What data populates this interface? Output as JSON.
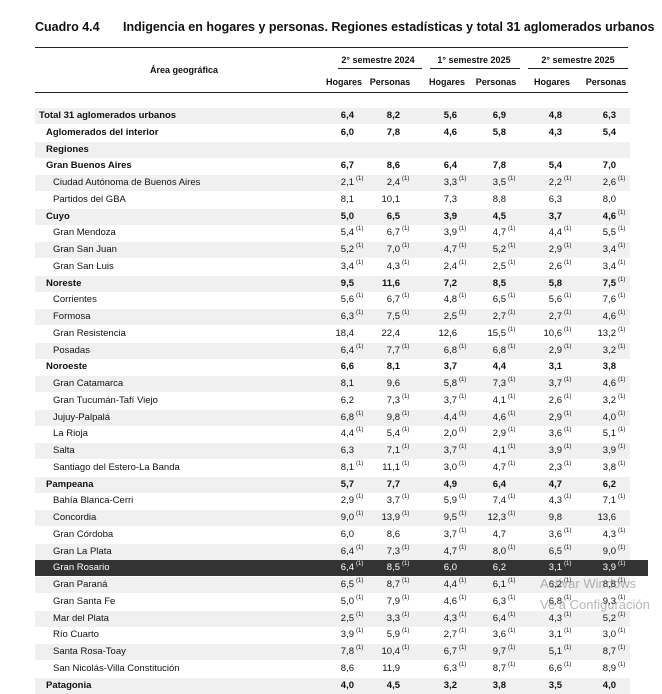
{
  "header": {
    "code": "Cuadro 4.4",
    "title": "Indigencia en hogares y personas. Regiones estadísticas y total 31 aglomerados urbanos"
  },
  "table": {
    "area_header": "Área geográfica",
    "groups": [
      "2° semestre 2024",
      "1° semestre 2025",
      "2° semestre 2025"
    ],
    "subheaders": [
      "Hogares",
      "Personas",
      "Hogares",
      "Personas",
      "Hogares",
      "Personas"
    ],
    "rows": [
      {
        "name": "Total 31 aglomerados urbanos",
        "level": 0,
        "cells": [
          {
            "v": "6,4"
          },
          {
            "v": "8,2"
          },
          {
            "v": "5,6"
          },
          {
            "v": "6,9"
          },
          {
            "v": "4,8"
          },
          {
            "v": "6,3"
          }
        ]
      },
      {
        "name": "Aglomerados del interior",
        "level": 1,
        "cells": [
          {
            "v": "6,0"
          },
          {
            "v": "7,8"
          },
          {
            "v": "4,6"
          },
          {
            "v": "5,8"
          },
          {
            "v": "4,3"
          },
          {
            "v": "5,4"
          }
        ]
      },
      {
        "name": "Regiones",
        "level": 1,
        "cells": []
      },
      {
        "name": "Gran Buenos Aires",
        "level": 2,
        "cells": [
          {
            "v": "6,7"
          },
          {
            "v": "8,6"
          },
          {
            "v": "6,4"
          },
          {
            "v": "7,8"
          },
          {
            "v": "5,4"
          },
          {
            "v": "7,0"
          }
        ]
      },
      {
        "name": "Ciudad Autónoma de Buenos Aires",
        "level": 3,
        "cells": [
          {
            "v": "2,1",
            "n": "(1)"
          },
          {
            "v": "2,4",
            "n": "(1)"
          },
          {
            "v": "3,3",
            "n": "(1)"
          },
          {
            "v": "3,5",
            "n": "(1)"
          },
          {
            "v": "2,2",
            "n": "(1)"
          },
          {
            "v": "2,6",
            "n": "(1)"
          }
        ]
      },
      {
        "name": "Partidos del GBA",
        "level": 3,
        "cells": [
          {
            "v": "8,1"
          },
          {
            "v": "10,1"
          },
          {
            "v": "7,3"
          },
          {
            "v": "8,8"
          },
          {
            "v": "6,3"
          },
          {
            "v": "8,0"
          }
        ]
      },
      {
        "name": "Cuyo",
        "level": 2,
        "cells": [
          {
            "v": "5,0"
          },
          {
            "v": "6,5"
          },
          {
            "v": "3,9"
          },
          {
            "v": "4,5"
          },
          {
            "v": "3,7"
          },
          {
            "v": "4,6",
            "n": "(1)"
          }
        ]
      },
      {
        "name": "Gran Mendoza",
        "level": 3,
        "cells": [
          {
            "v": "5,4",
            "n": "(1)"
          },
          {
            "v": "6,7",
            "n": "(1)"
          },
          {
            "v": "3,9",
            "n": "(1)"
          },
          {
            "v": "4,7",
            "n": "(1)"
          },
          {
            "v": "4,4",
            "n": "(1)"
          },
          {
            "v": "5,5",
            "n": "(1)"
          }
        ]
      },
      {
        "name": "Gran San Juan",
        "level": 3,
        "cells": [
          {
            "v": "5,2",
            "n": "(1)"
          },
          {
            "v": "7,0",
            "n": "(1)"
          },
          {
            "v": "4,7",
            "n": "(1)"
          },
          {
            "v": "5,2",
            "n": "(1)"
          },
          {
            "v": "2,9",
            "n": "(1)"
          },
          {
            "v": "3,4",
            "n": "(1)"
          }
        ]
      },
      {
        "name": "Gran San Luis",
        "level": 3,
        "cells": [
          {
            "v": "3,4",
            "n": "(1)"
          },
          {
            "v": "4,3",
            "n": "(1)"
          },
          {
            "v": "2,4",
            "n": "(1)"
          },
          {
            "v": "2,5",
            "n": "(1)"
          },
          {
            "v": "2,6",
            "n": "(1)"
          },
          {
            "v": "3,4",
            "n": "(1)"
          }
        ]
      },
      {
        "name": "Noreste",
        "level": 2,
        "cells": [
          {
            "v": "9,5"
          },
          {
            "v": "11,6"
          },
          {
            "v": "7,2"
          },
          {
            "v": "8,5"
          },
          {
            "v": "5,8"
          },
          {
            "v": "7,5",
            "n": "(1)"
          }
        ]
      },
      {
        "name": "Corrientes",
        "level": 3,
        "cells": [
          {
            "v": "5,6",
            "n": "(1)"
          },
          {
            "v": "6,7",
            "n": "(1)"
          },
          {
            "v": "4,8",
            "n": "(1)"
          },
          {
            "v": "6,5",
            "n": "(1)"
          },
          {
            "v": "5,6",
            "n": "(1)"
          },
          {
            "v": "7,6",
            "n": "(1)"
          }
        ]
      },
      {
        "name": "Formosa",
        "level": 3,
        "cells": [
          {
            "v": "6,3",
            "n": "(1)"
          },
          {
            "v": "7,5",
            "n": "(1)"
          },
          {
            "v": "2,5",
            "n": "(1)"
          },
          {
            "v": "2,7",
            "n": "(1)"
          },
          {
            "v": "2,7",
            "n": "(1)"
          },
          {
            "v": "4,6",
            "n": "(1)"
          }
        ]
      },
      {
        "name": "Gran Resistencia",
        "level": 3,
        "cells": [
          {
            "v": "18,4"
          },
          {
            "v": "22,4"
          },
          {
            "v": "12,6"
          },
          {
            "v": "15,5",
            "n": "(1)"
          },
          {
            "v": "10,6",
            "n": "(1)"
          },
          {
            "v": "13,2",
            "n": "(1)"
          }
        ]
      },
      {
        "name": "Posadas",
        "level": 3,
        "cells": [
          {
            "v": "6,4",
            "n": "(1)"
          },
          {
            "v": "7,7",
            "n": "(1)"
          },
          {
            "v": "6,8",
            "n": "(1)"
          },
          {
            "v": "6,8",
            "n": "(1)"
          },
          {
            "v": "2,9",
            "n": "(1)"
          },
          {
            "v": "3,2",
            "n": "(1)"
          }
        ]
      },
      {
        "name": "Noroeste",
        "level": 2,
        "cells": [
          {
            "v": "6,6"
          },
          {
            "v": "8,1"
          },
          {
            "v": "3,7"
          },
          {
            "v": "4,4"
          },
          {
            "v": "3,1"
          },
          {
            "v": "3,8"
          }
        ]
      },
      {
        "name": "Gran Catamarca",
        "level": 3,
        "cells": [
          {
            "v": "8,1"
          },
          {
            "v": "9,6"
          },
          {
            "v": "5,8",
            "n": "(1)"
          },
          {
            "v": "7,3",
            "n": "(1)"
          },
          {
            "v": "3,7",
            "n": "(1)"
          },
          {
            "v": "4,6",
            "n": "(1)"
          }
        ]
      },
      {
        "name": "Gran Tucumán-Tafí Viejo",
        "level": 3,
        "cells": [
          {
            "v": "6,2"
          },
          {
            "v": "7,3",
            "n": "(1)"
          },
          {
            "v": "3,7",
            "n": "(1)"
          },
          {
            "v": "4,1",
            "n": "(1)"
          },
          {
            "v": "2,6",
            "n": "(1)"
          },
          {
            "v": "3,2",
            "n": "(1)"
          }
        ]
      },
      {
        "name": "Jujuy-Palpalá",
        "level": 3,
        "cells": [
          {
            "v": "6,8",
            "n": "(1)"
          },
          {
            "v": "9,8",
            "n": "(1)"
          },
          {
            "v": "4,4",
            "n": "(1)"
          },
          {
            "v": "4,6",
            "n": "(1)"
          },
          {
            "v": "2,9",
            "n": "(1)"
          },
          {
            "v": "4,0",
            "n": "(1)"
          }
        ]
      },
      {
        "name": "La Rioja",
        "level": 3,
        "cells": [
          {
            "v": "4,4",
            "n": "(1)"
          },
          {
            "v": "5,4",
            "n": "(1)"
          },
          {
            "v": "2,0",
            "n": "(1)"
          },
          {
            "v": "2,9",
            "n": "(1)"
          },
          {
            "v": "3,6",
            "n": "(1)"
          },
          {
            "v": "5,1",
            "n": "(1)"
          }
        ]
      },
      {
        "name": "Salta",
        "level": 3,
        "cells": [
          {
            "v": "6,3"
          },
          {
            "v": "7,1",
            "n": "(1)"
          },
          {
            "v": "3,7",
            "n": "(1)"
          },
          {
            "v": "4,1",
            "n": "(1)"
          },
          {
            "v": "3,9",
            "n": "(1)"
          },
          {
            "v": "3,9",
            "n": "(1)"
          }
        ]
      },
      {
        "name": "Santiago del Estero-La Banda",
        "level": 3,
        "cells": [
          {
            "v": "8,1",
            "n": "(1)"
          },
          {
            "v": "11,1",
            "n": "(1)"
          },
          {
            "v": "3,0",
            "n": "(1)"
          },
          {
            "v": "4,7",
            "n": "(1)"
          },
          {
            "v": "2,3",
            "n": "(1)"
          },
          {
            "v": "3,8",
            "n": "(1)"
          }
        ]
      },
      {
        "name": "Pampeana",
        "level": 2,
        "cells": [
          {
            "v": "5,7"
          },
          {
            "v": "7,7"
          },
          {
            "v": "4,9"
          },
          {
            "v": "6,4"
          },
          {
            "v": "4,7"
          },
          {
            "v": "6,2"
          }
        ]
      },
      {
        "name": "Bahía Blanca-Cerri",
        "level": 3,
        "cells": [
          {
            "v": "2,9",
            "n": "(1)"
          },
          {
            "v": "3,7",
            "n": "(1)"
          },
          {
            "v": "5,9",
            "n": "(1)"
          },
          {
            "v": "7,4",
            "n": "(1)"
          },
          {
            "v": "4,3",
            "n": "(1)"
          },
          {
            "v": "7,1",
            "n": "(1)"
          }
        ]
      },
      {
        "name": "Concordia",
        "level": 3,
        "cells": [
          {
            "v": "9,0",
            "n": "(1)"
          },
          {
            "v": "13,9",
            "n": "(1)"
          },
          {
            "v": "9,5",
            "n": "(1)"
          },
          {
            "v": "12,3",
            "n": "(1)"
          },
          {
            "v": "9,8"
          },
          {
            "v": "13,6"
          }
        ]
      },
      {
        "name": "Gran Córdoba",
        "level": 3,
        "cells": [
          {
            "v": "6,0"
          },
          {
            "v": "8,6"
          },
          {
            "v": "3,7",
            "n": "(1)"
          },
          {
            "v": "4,7"
          },
          {
            "v": "3,6",
            "n": "(1)"
          },
          {
            "v": "4,3",
            "n": "(1)"
          }
        ]
      },
      {
        "name": "Gran La Plata",
        "level": 3,
        "cells": [
          {
            "v": "6,4",
            "n": "(1)"
          },
          {
            "v": "7,3",
            "n": "(1)"
          },
          {
            "v": "4,7",
            "n": "(1)"
          },
          {
            "v": "8,0",
            "n": "(1)"
          },
          {
            "v": "6,5",
            "n": "(1)"
          },
          {
            "v": "9,0",
            "n": "(1)"
          }
        ]
      },
      {
        "name": "Gran Rosario",
        "level": 3,
        "highlight": true,
        "cells": [
          {
            "v": "6,4",
            "n": "(1)"
          },
          {
            "v": "8,5",
            "n": "(1)"
          },
          {
            "v": "6,0"
          },
          {
            "v": "6,2"
          },
          {
            "v": "3,1",
            "n": "(1)"
          },
          {
            "v": "3,9",
            "n": "(1)"
          }
        ]
      },
      {
        "name": "Gran Paraná",
        "level": 3,
        "cells": [
          {
            "v": "6,5",
            "n": "(1)"
          },
          {
            "v": "8,7",
            "n": "(1)"
          },
          {
            "v": "4,4",
            "n": "(1)"
          },
          {
            "v": "6,1",
            "n": "(1)"
          },
          {
            "v": "6,2",
            "n": "(1)"
          },
          {
            "v": "8,8",
            "n": "(1)"
          }
        ]
      },
      {
        "name": "Gran Santa Fe",
        "level": 3,
        "cells": [
          {
            "v": "5,0",
            "n": "(1)"
          },
          {
            "v": "7,9",
            "n": "(1)"
          },
          {
            "v": "4,6",
            "n": "(1)"
          },
          {
            "v": "6,3",
            "n": "(1)"
          },
          {
            "v": "6,8",
            "n": "(1)"
          },
          {
            "v": "9,3",
            "n": "(1)"
          }
        ]
      },
      {
        "name": "Mar del Plata",
        "level": 3,
        "cells": [
          {
            "v": "2,5",
            "n": "(1)"
          },
          {
            "v": "3,3",
            "n": "(1)"
          },
          {
            "v": "4,3",
            "n": "(1)"
          },
          {
            "v": "6,4",
            "n": "(1)"
          },
          {
            "v": "4,3",
            "n": "(1)"
          },
          {
            "v": "5,2",
            "n": "(1)"
          }
        ]
      },
      {
        "name": "Río Cuarto",
        "level": 3,
        "cells": [
          {
            "v": "3,9",
            "n": "(1)"
          },
          {
            "v": "5,9",
            "n": "(1)"
          },
          {
            "v": "2,7",
            "n": "(1)"
          },
          {
            "v": "3,6",
            "n": "(1)"
          },
          {
            "v": "3,1",
            "n": "(1)"
          },
          {
            "v": "3,0",
            "n": "(1)"
          }
        ]
      },
      {
        "name": "Santa Rosa-Toay",
        "level": 3,
        "cells": [
          {
            "v": "7,8",
            "n": "(1)"
          },
          {
            "v": "10,4",
            "n": "(1)"
          },
          {
            "v": "6,7",
            "n": "(1)"
          },
          {
            "v": "9,7",
            "n": "(1)"
          },
          {
            "v": "5,1",
            "n": "(1)"
          },
          {
            "v": "8,7",
            "n": "(1)"
          }
        ]
      },
      {
        "name": "San Nicolás-Villa Constitución",
        "level": 3,
        "cells": [
          {
            "v": "8,6"
          },
          {
            "v": "11,9"
          },
          {
            "v": "6,3",
            "n": "(1)"
          },
          {
            "v": "8,7",
            "n": "(1)"
          },
          {
            "v": "6,6",
            "n": "(1)"
          },
          {
            "v": "8,9",
            "n": "(1)"
          }
        ]
      },
      {
        "name": "Patagonia",
        "level": 2,
        "cells": [
          {
            "v": "4,0"
          },
          {
            "v": "4,5"
          },
          {
            "v": "3,2"
          },
          {
            "v": "3,8"
          },
          {
            "v": "3,5"
          },
          {
            "v": "4,0"
          }
        ]
      }
    ]
  },
  "watermark": [
    "Activar Windows",
    "Ve a Configuración"
  ]
}
